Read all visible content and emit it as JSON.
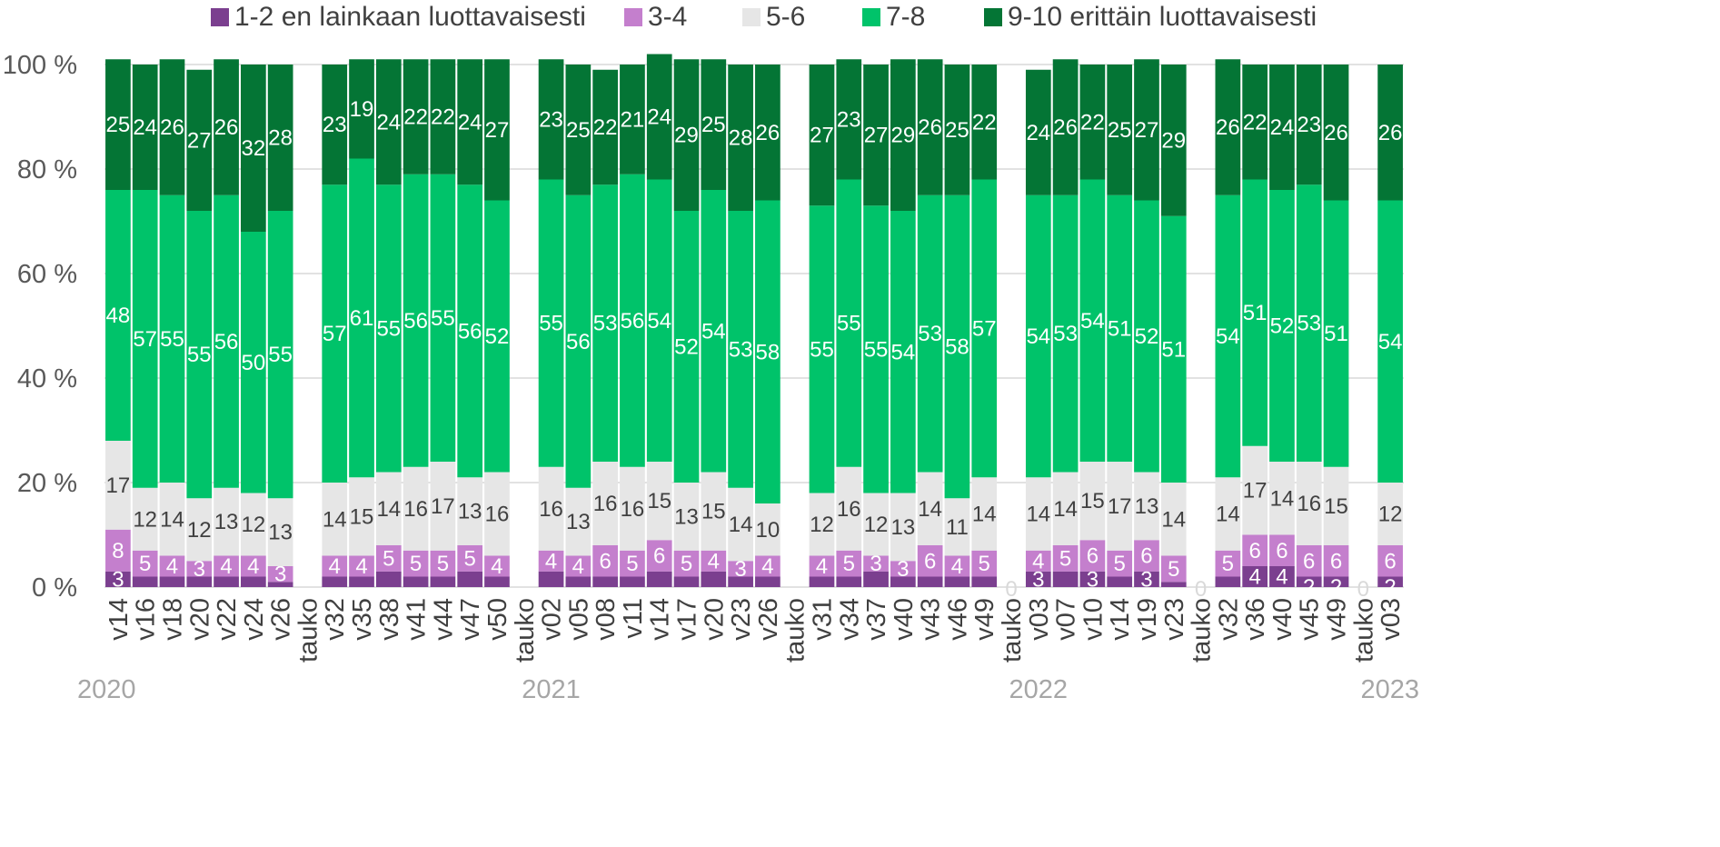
{
  "chart_data": {
    "type": "bar",
    "stacked": true,
    "normalized": true,
    "title": "",
    "xlabel": "",
    "ylabel": "",
    "ylim": [
      0,
      100
    ],
    "y_ticks": [
      "0 %",
      "20 %",
      "40 %",
      "60 %",
      "80 %",
      "100 %"
    ],
    "grid": "horizontal",
    "legend_position": "top",
    "categories": [
      "v14",
      "v16",
      "v18",
      "v20",
      "v22",
      "v24",
      "v26",
      "tauko",
      "v32",
      "v35",
      "v38",
      "v41",
      "v44",
      "v47",
      "v50",
      "tauko",
      "v02",
      "v05",
      "v08",
      "v11",
      "v14",
      "v17",
      "v20",
      "v23",
      "v26",
      "tauko",
      "v31",
      "v34",
      "v37",
      "v40",
      "v43",
      "v46",
      "v49",
      "tauko",
      "v03",
      "v07",
      "v10",
      "v14",
      "v19",
      "v23",
      "tauko",
      "v32",
      "v36",
      "v40",
      "v45",
      "v49",
      "tauko",
      "v03"
    ],
    "year_labels": [
      {
        "label": "2020",
        "category_index": 0
      },
      {
        "label": "2021",
        "category_index": 16
      },
      {
        "label": "2022",
        "category_index": 34
      },
      {
        "label": "2023",
        "category_index": 47
      }
    ],
    "series": [
      {
        "name": "1-2 en lainkaan luottavaisesti",
        "color": "#7b3f8f",
        "values": [
          3,
          2,
          2,
          2,
          2,
          2,
          1,
          0,
          2,
          2,
          3,
          2,
          2,
          3,
          2,
          0,
          3,
          2,
          2,
          2,
          3,
          2,
          3,
          2,
          2,
          0,
          2,
          2,
          3,
          2,
          2,
          2,
          2,
          0,
          3,
          3,
          3,
          2,
          3,
          1,
          0,
          2,
          4,
          4,
          2,
          2,
          0,
          2
        ],
        "labels": [
          "3",
          "",
          "",
          "",
          "",
          "",
          "",
          "",
          "",
          "",
          "",
          "",
          "",
          "",
          "",
          "",
          "",
          "",
          "",
          "",
          "",
          "",
          "",
          "",
          "",
          "",
          "",
          "",
          "",
          "",
          "",
          "",
          "",
          "0",
          "3",
          "",
          "3",
          "",
          "3",
          "",
          "0",
          "",
          "4",
          "4",
          "2",
          "2",
          "0",
          "2"
        ]
      },
      {
        "name": "3-4",
        "color": "#c47fcd",
        "values": [
          8,
          5,
          4,
          3,
          4,
          4,
          3,
          0,
          4,
          4,
          5,
          5,
          5,
          5,
          4,
          0,
          4,
          4,
          6,
          5,
          6,
          5,
          4,
          3,
          4,
          0,
          4,
          5,
          3,
          3,
          6,
          4,
          5,
          0,
          4,
          5,
          6,
          5,
          6,
          5,
          0,
          5,
          6,
          6,
          6,
          6,
          0,
          6
        ],
        "labels": [
          "8",
          "5",
          "4",
          "3",
          "4",
          "4",
          "3",
          "",
          "4",
          "4",
          "5",
          "5",
          "5",
          "5",
          "4",
          "",
          "4",
          "4",
          "6",
          "5",
          "6",
          "5",
          "4",
          "3",
          "4",
          "",
          "4",
          "5",
          "3",
          "3",
          "6",
          "4",
          "5",
          "",
          "4",
          "5",
          "6",
          "5",
          "6",
          "5",
          "",
          "5",
          "6",
          "6",
          "6",
          "6",
          "",
          "6"
        ]
      },
      {
        "name": "5-6",
        "color": "#e6e6e6",
        "values": [
          17,
          12,
          14,
          12,
          13,
          12,
          13,
          0,
          14,
          15,
          14,
          16,
          17,
          13,
          16,
          0,
          16,
          13,
          16,
          16,
          15,
          13,
          15,
          14,
          10,
          0,
          12,
          16,
          12,
          13,
          14,
          11,
          14,
          0,
          14,
          14,
          15,
          17,
          13,
          14,
          0,
          14,
          17,
          14,
          16,
          15,
          0,
          12
        ],
        "labels": [
          "17",
          "12",
          "14",
          "12",
          "13",
          "12",
          "13",
          "",
          "14",
          "15",
          "14",
          "16",
          "17",
          "13",
          "16",
          "",
          "16",
          "13",
          "16",
          "16",
          "15",
          "13",
          "15",
          "14",
          "10",
          "",
          "12",
          "16",
          "12",
          "13",
          "14",
          "11",
          "14",
          "",
          "14",
          "14",
          "15",
          "17",
          "13",
          "14",
          "",
          "14",
          "17",
          "14",
          "16",
          "15",
          "",
          "12"
        ]
      },
      {
        "name": "7-8",
        "color": "#00c36a",
        "values": [
          48,
          57,
          55,
          55,
          56,
          50,
          55,
          0,
          57,
          61,
          55,
          56,
          55,
          56,
          52,
          0,
          55,
          56,
          53,
          56,
          54,
          52,
          54,
          53,
          58,
          0,
          55,
          55,
          55,
          54,
          53,
          58,
          57,
          0,
          54,
          53,
          54,
          51,
          52,
          51,
          0,
          54,
          51,
          52,
          53,
          51,
          0,
          54
        ],
        "labels": [
          "48",
          "57",
          "55",
          "55",
          "56",
          "50",
          "55",
          "",
          "57",
          "61",
          "55",
          "56",
          "55",
          "56",
          "52",
          "",
          "55",
          "56",
          "53",
          "56",
          "54",
          "52",
          "54",
          "53",
          "58",
          "",
          "55",
          "55",
          "55",
          "54",
          "53",
          "58",
          "57",
          "",
          "54",
          "53",
          "54",
          "51",
          "52",
          "51",
          "",
          "54",
          "51",
          "52",
          "53",
          "51",
          "",
          "54"
        ]
      },
      {
        "name": "9-10 erittäin luottavaisesti",
        "color": "#047535",
        "values": [
          25,
          24,
          26,
          27,
          26,
          32,
          28,
          0,
          23,
          19,
          24,
          22,
          22,
          24,
          27,
          0,
          23,
          25,
          22,
          21,
          24,
          29,
          25,
          28,
          26,
          0,
          27,
          23,
          27,
          29,
          26,
          25,
          22,
          0,
          24,
          26,
          22,
          25,
          27,
          29,
          0,
          26,
          22,
          24,
          23,
          26,
          0,
          26
        ],
        "labels": [
          "25",
          "24",
          "26",
          "27",
          "26",
          "32",
          "28",
          "",
          "23",
          "19",
          "24",
          "22",
          "22",
          "24",
          "27",
          "",
          "23",
          "25",
          "22",
          "21",
          "24",
          "29",
          "25",
          "28",
          "26",
          "",
          "27",
          "23",
          "27",
          "29",
          "26",
          "25",
          "22",
          "",
          "24",
          "26",
          "22",
          "25",
          "27",
          "29",
          "",
          "26",
          "22",
          "24",
          "23",
          "26",
          "",
          "26"
        ]
      }
    ]
  }
}
